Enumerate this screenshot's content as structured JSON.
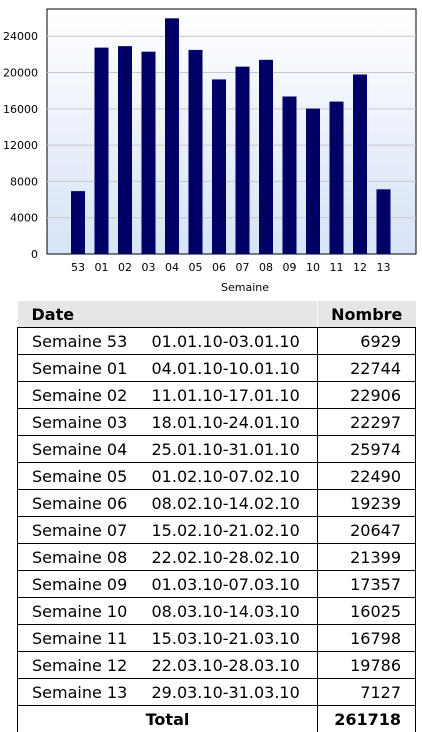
{
  "chart_data": {
    "type": "bar",
    "title": "",
    "xlabel": "Semaine",
    "ylabel": "",
    "categories": [
      "53",
      "01",
      "02",
      "03",
      "04",
      "05",
      "06",
      "07",
      "08",
      "09",
      "10",
      "11",
      "12",
      "13"
    ],
    "values": [
      6929,
      22744,
      22906,
      22297,
      25974,
      22490,
      19239,
      20647,
      21399,
      17357,
      16025,
      16798,
      19786,
      7127
    ],
    "yticks": [
      0,
      4000,
      8000,
      12000,
      16000,
      20000,
      24000
    ],
    "ylim": [
      0,
      27000
    ],
    "bar_color": "#000066",
    "background_gradient": [
      "#ffffff",
      "#d7e3f7"
    ],
    "grid": true
  },
  "table": {
    "headers": [
      "Date",
      "Nombre"
    ],
    "rows": [
      {
        "week": "Semaine 53",
        "range": "01.01.10-03.01.10",
        "count": "6929"
      },
      {
        "week": "Semaine 01",
        "range": "04.01.10-10.01.10",
        "count": "22744"
      },
      {
        "week": "Semaine 02",
        "range": "11.01.10-17.01.10",
        "count": "22906"
      },
      {
        "week": "Semaine 03",
        "range": "18.01.10-24.01.10",
        "count": "22297"
      },
      {
        "week": "Semaine 04",
        "range": "25.01.10-31.01.10",
        "count": "25974"
      },
      {
        "week": "Semaine 05",
        "range": "01.02.10-07.02.10",
        "count": "22490"
      },
      {
        "week": "Semaine 06",
        "range": "08.02.10-14.02.10",
        "count": "19239"
      },
      {
        "week": "Semaine 07",
        "range": "15.02.10-21.02.10",
        "count": "20647"
      },
      {
        "week": "Semaine 08",
        "range": "22.02.10-28.02.10",
        "count": "21399"
      },
      {
        "week": "Semaine 09",
        "range": "01.03.10-07.03.10",
        "count": "17357"
      },
      {
        "week": "Semaine 10",
        "range": "08.03.10-14.03.10",
        "count": "16025"
      },
      {
        "week": "Semaine 11",
        "range": "15.03.10-21.03.10",
        "count": "16798"
      },
      {
        "week": "Semaine 12",
        "range": "22.03.10-28.03.10",
        "count": "19786"
      },
      {
        "week": "Semaine 13",
        "range": "29.03.10-31.03.10",
        "count": "7127"
      }
    ],
    "total_label": "Total",
    "total_value": "261718"
  }
}
